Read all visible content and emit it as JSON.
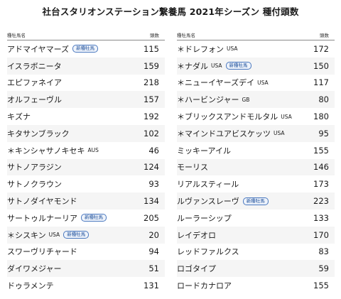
{
  "title": "社台スタリオンステーション繋養馬 2021年シーズン 種付頭数",
  "header": {
    "name_label": "種牡馬名",
    "count_label": "頭数"
  },
  "left": [
    {
      "name": "アドマイヤマーズ",
      "country": "",
      "badge": "新種牡馬",
      "count": "115"
    },
    {
      "name": "イスラボニータ",
      "country": "",
      "badge": "",
      "count": "159"
    },
    {
      "name": "エピファネイア",
      "country": "",
      "badge": "",
      "count": "218"
    },
    {
      "name": "オルフェーヴル",
      "country": "",
      "badge": "",
      "count": "157"
    },
    {
      "name": "キズナ",
      "country": "",
      "badge": "",
      "count": "192"
    },
    {
      "name": "キタサンブラック",
      "country": "",
      "badge": "",
      "count": "102"
    },
    {
      "name": "＊キンシャサノキセキ",
      "country": "AUS",
      "badge": "",
      "count": "46"
    },
    {
      "name": "サトノアラジン",
      "country": "",
      "badge": "",
      "count": "124"
    },
    {
      "name": "サトノクラウン",
      "country": "",
      "badge": "",
      "count": "93"
    },
    {
      "name": "サトノダイヤモンド",
      "country": "",
      "badge": "",
      "count": "134"
    },
    {
      "name": "サートゥルナーリア",
      "country": "",
      "badge": "新種牡馬",
      "count": "205"
    },
    {
      "name": "＊シスキン",
      "country": "USA",
      "badge": "新種牡馬",
      "count": "20"
    },
    {
      "name": "スワーヴリチャード",
      "country": "",
      "badge": "",
      "count": "94"
    },
    {
      "name": "ダイワメジャー",
      "country": "",
      "badge": "",
      "count": "51"
    },
    {
      "name": "ドゥラメンテ",
      "country": "",
      "badge": "",
      "count": "131"
    }
  ],
  "right": [
    {
      "name": "＊ドレフォン",
      "country": "USA",
      "badge": "",
      "count": "172"
    },
    {
      "name": "＊ナダル",
      "country": "USA",
      "badge": "新種牡馬",
      "count": "150"
    },
    {
      "name": "＊ニューイヤーズデイ",
      "country": "USA",
      "badge": "",
      "count": "117"
    },
    {
      "name": "＊ハービンジャー",
      "country": "GB",
      "badge": "",
      "count": "80"
    },
    {
      "name": "＊ブリックスアンドモルタル",
      "country": "USA",
      "badge": "",
      "count": "180"
    },
    {
      "name": "＊マインドユアビスケッツ",
      "country": "USA",
      "badge": "",
      "count": "95"
    },
    {
      "name": "ミッキーアイル",
      "country": "",
      "badge": "",
      "count": "155"
    },
    {
      "name": "モーリス",
      "country": "",
      "badge": "",
      "count": "146"
    },
    {
      "name": "リアルスティール",
      "country": "",
      "badge": "",
      "count": "173"
    },
    {
      "name": "ルヴァンスレーヴ",
      "country": "",
      "badge": "新種牡馬",
      "count": "223"
    },
    {
      "name": "ルーラーシップ",
      "country": "",
      "badge": "",
      "count": "133"
    },
    {
      "name": "レイデオロ",
      "country": "",
      "badge": "",
      "count": "170"
    },
    {
      "name": "レッドファルクス",
      "country": "",
      "badge": "",
      "count": "83"
    },
    {
      "name": "ロゴタイプ",
      "country": "",
      "badge": "",
      "count": "59"
    },
    {
      "name": "ロードカナロア",
      "country": "",
      "badge": "",
      "count": "155"
    }
  ]
}
